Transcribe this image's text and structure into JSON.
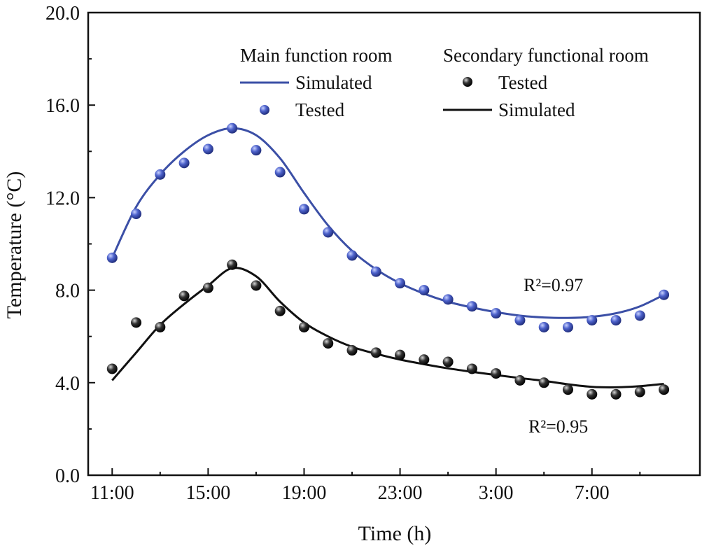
{
  "chart_data": {
    "type": "line",
    "xlabel": "Time (h)",
    "ylabel": "Temperature (°C)",
    "ylim": [
      0,
      20
    ],
    "y_ticks": [
      "0.0",
      "4.0",
      "8.0",
      "12.0",
      "16.0",
      "20.0"
    ],
    "x_ticks": [
      "11:00",
      "15:00",
      "19:00",
      "23:00",
      "3:00",
      "7:00"
    ],
    "x_hours": [
      0,
      1,
      2,
      3,
      4,
      5,
      6,
      7,
      8,
      9,
      10,
      11,
      12,
      13,
      14,
      15,
      16,
      17,
      18,
      19,
      20,
      21,
      22,
      23
    ],
    "xlim": [
      -1,
      24.5
    ],
    "legend": {
      "main_header": "Main function room",
      "secondary_header": "Secondary functional room",
      "simulated_label": "Simulated",
      "tested_label": "Tested"
    },
    "colors": {
      "main": "#3b4fa6",
      "main_marker": "#4558c2",
      "secondary": "#111111",
      "secondary_marker": "#1a1a1a"
    },
    "annotations": {
      "main_r2": "R²=0.97",
      "secondary_r2": "R²=0.95"
    },
    "series": [
      {
        "name": "Main function room Tested",
        "values": [
          9.4,
          11.3,
          13.0,
          13.5,
          14.1,
          15.0,
          14.05,
          13.1,
          11.5,
          10.5,
          9.5,
          8.8,
          8.3,
          8.0,
          7.6,
          7.3,
          7.0,
          6.7,
          6.4,
          6.4,
          6.7,
          6.7,
          6.9,
          7.8
        ]
      },
      {
        "name": "Main function room Simulated",
        "values": [
          9.4,
          11.6,
          13.0,
          14.0,
          14.7,
          15.0,
          14.7,
          13.7,
          12.2,
          10.8,
          9.7,
          8.9,
          8.3,
          7.85,
          7.5,
          7.25,
          7.05,
          6.9,
          6.82,
          6.8,
          6.85,
          7.0,
          7.3,
          7.8
        ]
      },
      {
        "name": "Secondary functional room Tested",
        "values": [
          4.6,
          6.6,
          6.4,
          7.75,
          8.1,
          9.1,
          8.2,
          7.1,
          6.4,
          5.7,
          5.4,
          5.3,
          5.2,
          5.0,
          4.9,
          4.6,
          4.4,
          4.1,
          4.0,
          3.7,
          3.5,
          3.5,
          3.6,
          3.7
        ]
      },
      {
        "name": "Secondary functional room Simulated",
        "values": [
          4.1,
          5.3,
          6.5,
          7.4,
          8.2,
          8.95,
          8.6,
          7.5,
          6.6,
          6.0,
          5.55,
          5.25,
          5.0,
          4.8,
          4.62,
          4.47,
          4.33,
          4.2,
          4.08,
          3.93,
          3.82,
          3.8,
          3.85,
          3.95
        ]
      }
    ]
  }
}
